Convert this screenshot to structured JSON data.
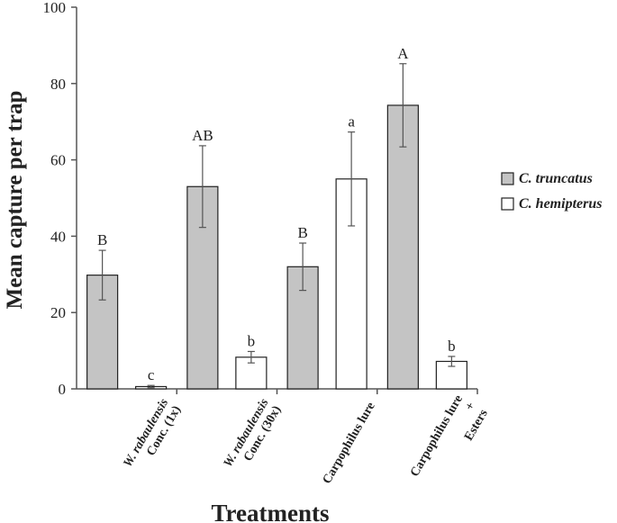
{
  "chart_data": {
    "type": "bar",
    "ylabel": "Mean capture per trap",
    "xlabel": "Treatments",
    "ylim": [
      0,
      100
    ],
    "yticks": [
      0,
      20,
      40,
      60,
      80,
      100
    ],
    "categories": [
      {
        "lines": [
          "W. rabaulensis",
          "Conc. (1x)"
        ],
        "italic": [
          true,
          false
        ]
      },
      {
        "lines": [
          "W. rabaulensis",
          "Conc. (30x)"
        ],
        "italic": [
          true,
          false
        ]
      },
      {
        "lines": [
          "Carpophilus lure"
        ],
        "italic": [
          false
        ]
      },
      {
        "lines": [
          "Carpophilus lure",
          "+",
          "Esters"
        ],
        "italic": [
          false,
          false,
          false
        ]
      }
    ],
    "series": [
      {
        "name": "C. truncatus",
        "color": "#c4c4c4",
        "values": [
          29.8,
          53.0,
          32.0,
          74.3
        ],
        "errors": [
          6.5,
          10.7,
          6.2,
          10.9
        ],
        "letters": [
          "B",
          "AB",
          "B",
          "A"
        ]
      },
      {
        "name": "C. hemipterus",
        "color": "#ffffff",
        "values": [
          0.6,
          8.3,
          55.0,
          7.2
        ],
        "errors": [
          0.3,
          1.5,
          12.3,
          1.3
        ],
        "letters": [
          "c",
          "b",
          "a",
          "b"
        ]
      }
    ],
    "legend_position": "right"
  }
}
